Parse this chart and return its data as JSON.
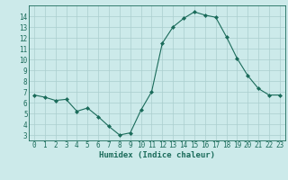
{
  "x": [
    0,
    1,
    2,
    3,
    4,
    5,
    6,
    7,
    8,
    9,
    10,
    11,
    12,
    13,
    14,
    15,
    16,
    17,
    18,
    19,
    20,
    21,
    22,
    23
  ],
  "y": [
    6.7,
    6.5,
    6.2,
    6.3,
    5.2,
    5.5,
    4.7,
    3.8,
    3.0,
    3.2,
    5.3,
    7.0,
    11.5,
    13.0,
    13.8,
    14.4,
    14.1,
    13.9,
    12.1,
    10.1,
    8.5,
    7.3,
    6.7,
    6.7
  ],
  "xlabel": "Humidex (Indice chaleur)",
  "ylim": [
    2.5,
    15.0
  ],
  "xlim": [
    -0.5,
    23.5
  ],
  "yticks": [
    3,
    4,
    5,
    6,
    7,
    8,
    9,
    10,
    11,
    12,
    13,
    14
  ],
  "xticks": [
    0,
    1,
    2,
    3,
    4,
    5,
    6,
    7,
    8,
    9,
    10,
    11,
    12,
    13,
    14,
    15,
    16,
    17,
    18,
    19,
    20,
    21,
    22,
    23
  ],
  "line_color": "#1a6b5a",
  "marker": "D",
  "marker_size": 2.0,
  "bg_color": "#cceaea",
  "grid_color": "#aacece",
  "font_color": "#1a6b5a",
  "xlabel_fontsize": 6.5,
  "tick_fontsize": 5.5
}
